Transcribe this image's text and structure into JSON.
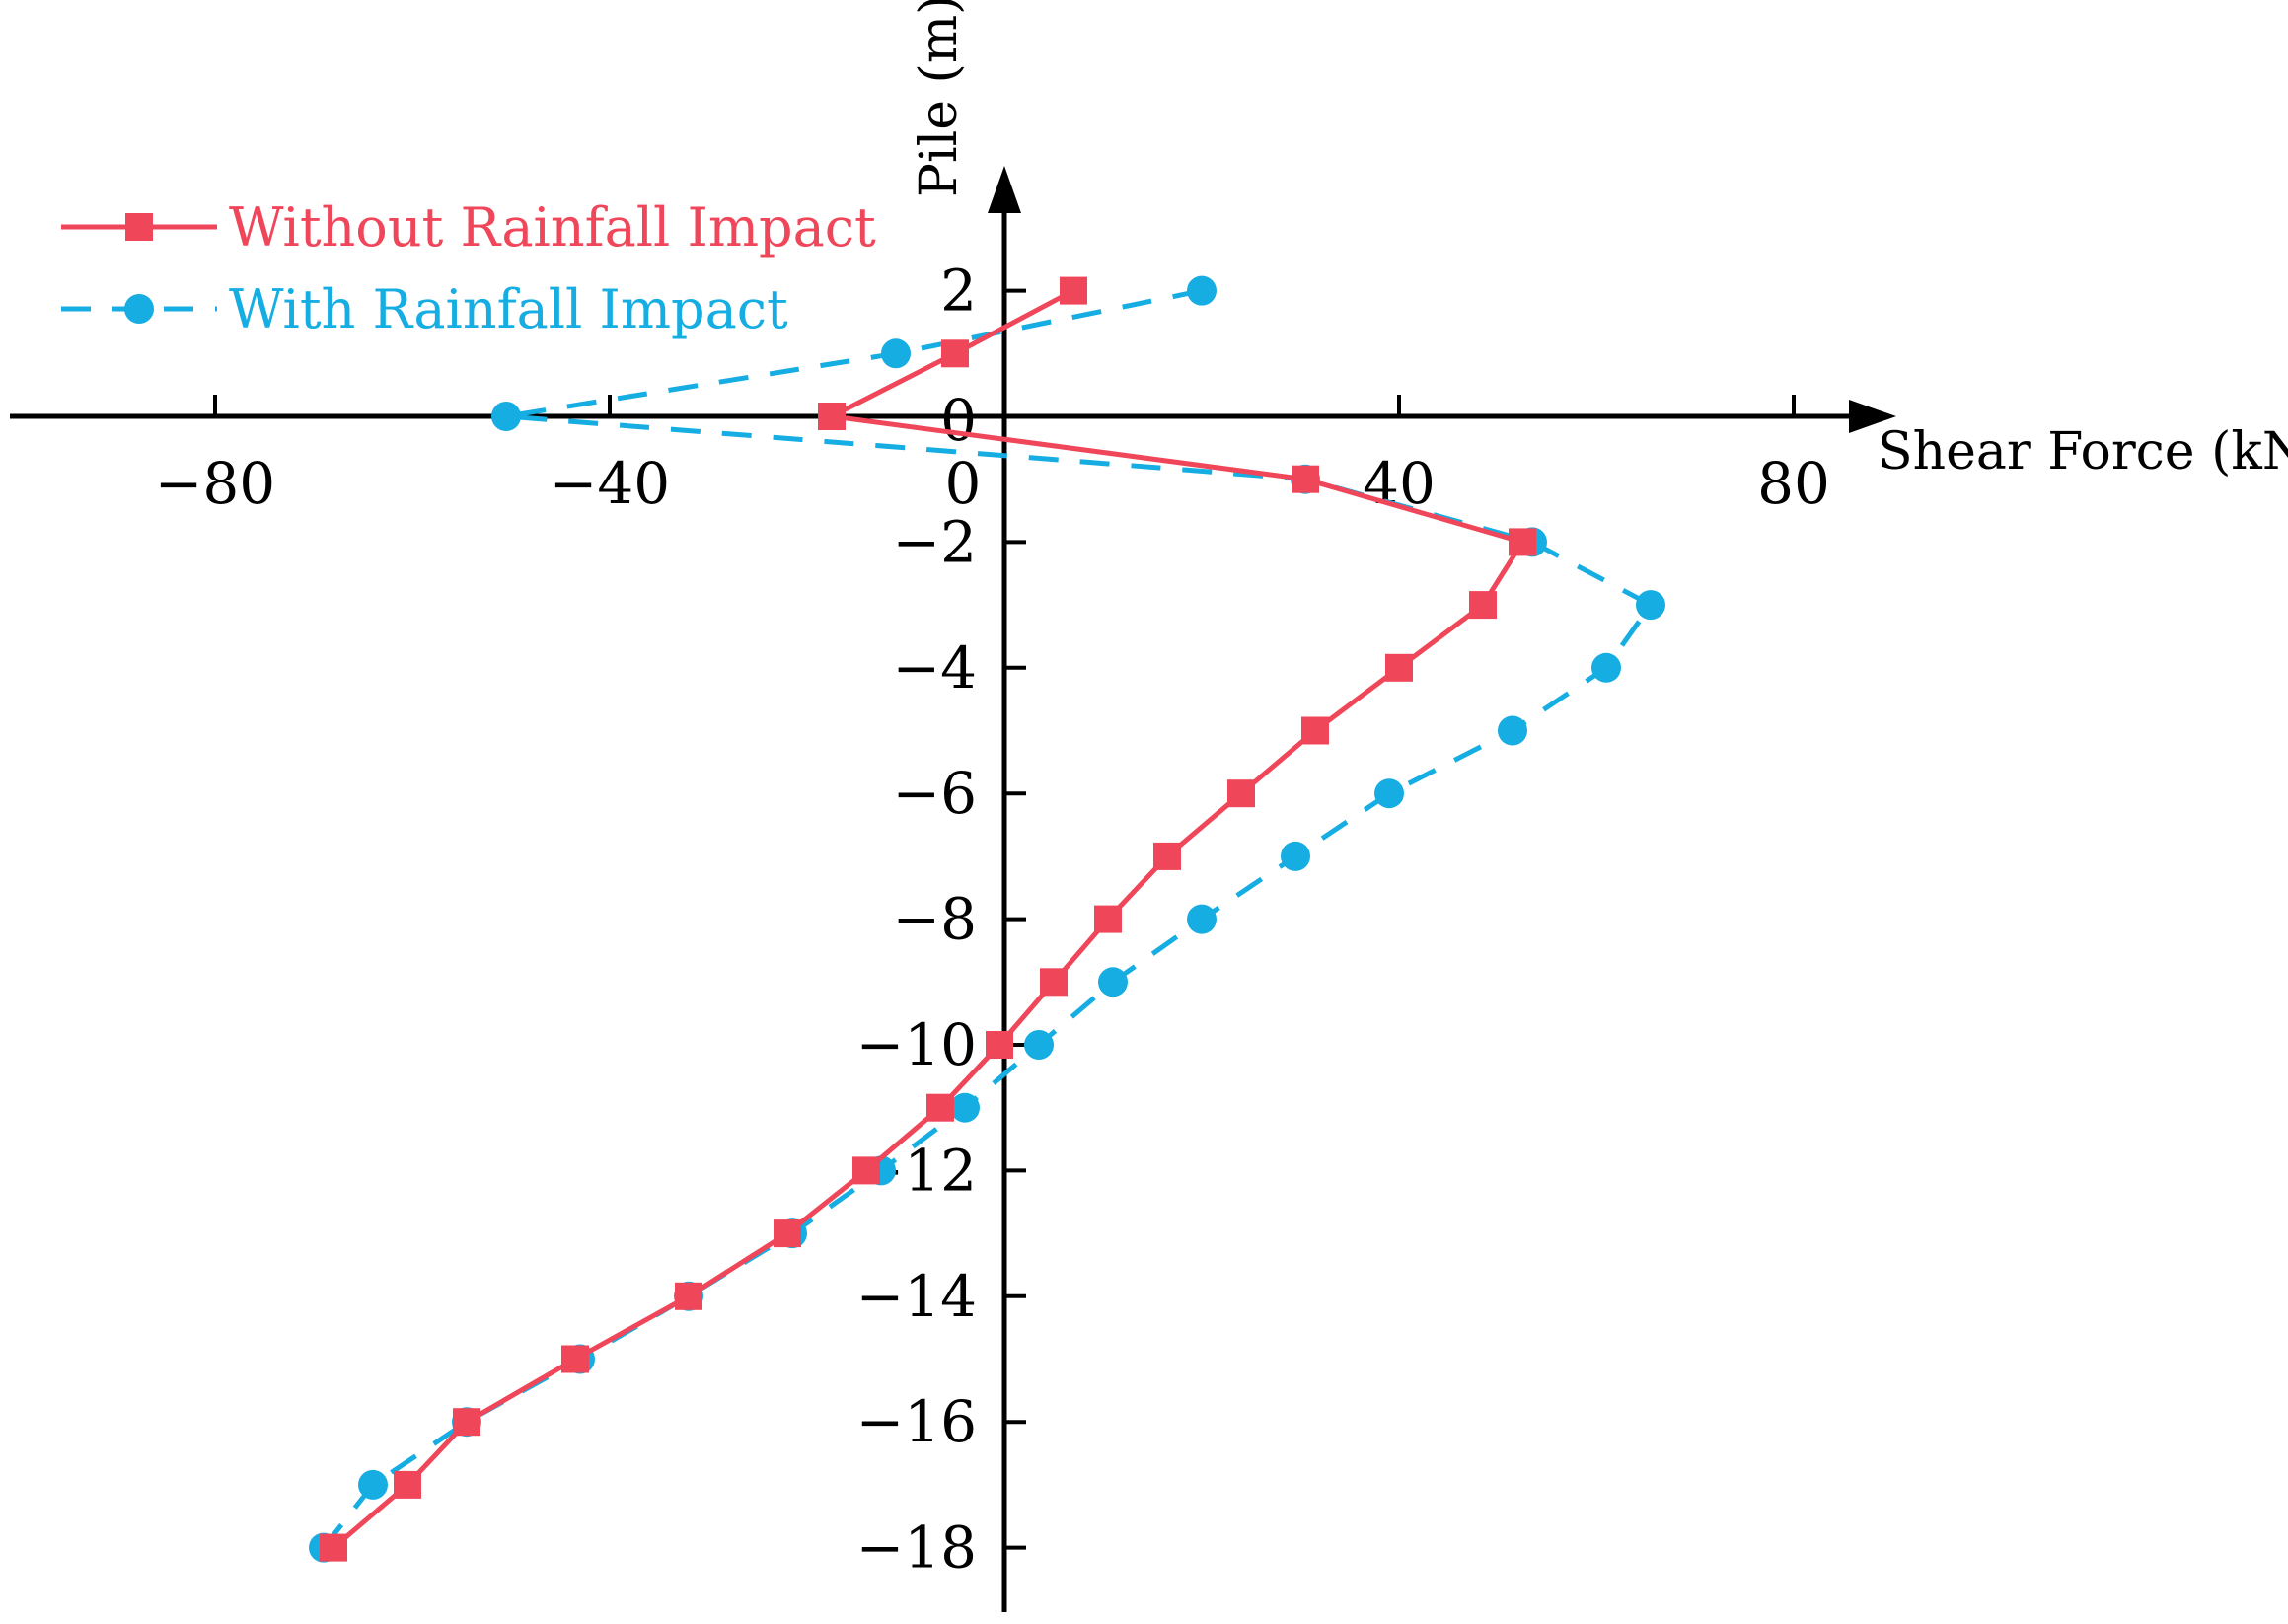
{
  "chart_data": {
    "type": "line",
    "title": "",
    "xlabel": "Shear Force (kN)",
    "ylabel": "Pile (m)",
    "xlim": [
      -100,
      90
    ],
    "ylim": [
      -19,
      4.2
    ],
    "x_ticks": [
      -80,
      -40,
      0,
      40,
      80
    ],
    "x_tick_labels": [
      "−80",
      "−40",
      "0",
      "40",
      "80"
    ],
    "y_ticks": [
      2,
      0,
      -2,
      -4,
      -6,
      -8,
      -10,
      -12,
      -14,
      -16,
      -18
    ],
    "y_tick_labels": [
      "2",
      "0",
      "−2",
      "−4",
      "−6",
      "−8",
      "−10",
      "−12",
      "−14",
      "−16",
      "−18"
    ],
    "grid": false,
    "legend_position": "top-left",
    "series": [
      {
        "name": "Without Rainfall Impact",
        "color": "#f0465a",
        "line_style": "solid",
        "marker": "square",
        "points": [
          {
            "x": 7,
            "y": 2
          },
          {
            "x": -5,
            "y": 1
          },
          {
            "x": -17.5,
            "y": 0
          },
          {
            "x": 30.5,
            "y": -1
          },
          {
            "x": 52.5,
            "y": -2
          },
          {
            "x": 48.5,
            "y": -3
          },
          {
            "x": 40,
            "y": -4
          },
          {
            "x": 31.5,
            "y": -5
          },
          {
            "x": 24,
            "y": -6
          },
          {
            "x": 16.5,
            "y": -7
          },
          {
            "x": 10.5,
            "y": -8
          },
          {
            "x": 5,
            "y": -9
          },
          {
            "x": -0.5,
            "y": -10
          },
          {
            "x": -6.5,
            "y": -11
          },
          {
            "x": -14,
            "y": -12
          },
          {
            "x": -22,
            "y": -13
          },
          {
            "x": -32,
            "y": -14
          },
          {
            "x": -43.5,
            "y": -15
          },
          {
            "x": -54.5,
            "y": -16
          },
          {
            "x": -60.5,
            "y": -17
          },
          {
            "x": -68,
            "y": -18
          }
        ]
      },
      {
        "name": "With Rainfall Impact",
        "color": "#15ade2",
        "line_style": "dashed",
        "marker": "circle",
        "points": [
          {
            "x": 20,
            "y": 2
          },
          {
            "x": -11,
            "y": 1
          },
          {
            "x": -50.5,
            "y": 0
          },
          {
            "x": 30.5,
            "y": -1
          },
          {
            "x": 53.5,
            "y": -2
          },
          {
            "x": 65.5,
            "y": -3
          },
          {
            "x": 61,
            "y": -4
          },
          {
            "x": 51.5,
            "y": -5
          },
          {
            "x": 39,
            "y": -6
          },
          {
            "x": 29.5,
            "y": -7
          },
          {
            "x": 20,
            "y": -8
          },
          {
            "x": 11,
            "y": -9
          },
          {
            "x": 3.5,
            "y": -10
          },
          {
            "x": -4,
            "y": -11
          },
          {
            "x": -12.5,
            "y": -12
          },
          {
            "x": -21.5,
            "y": -13
          },
          {
            "x": -32,
            "y": -14
          },
          {
            "x": -43,
            "y": -15
          },
          {
            "x": -54.5,
            "y": -16
          },
          {
            "x": -64,
            "y": -17
          },
          {
            "x": -69,
            "y": -18
          }
        ]
      }
    ]
  }
}
